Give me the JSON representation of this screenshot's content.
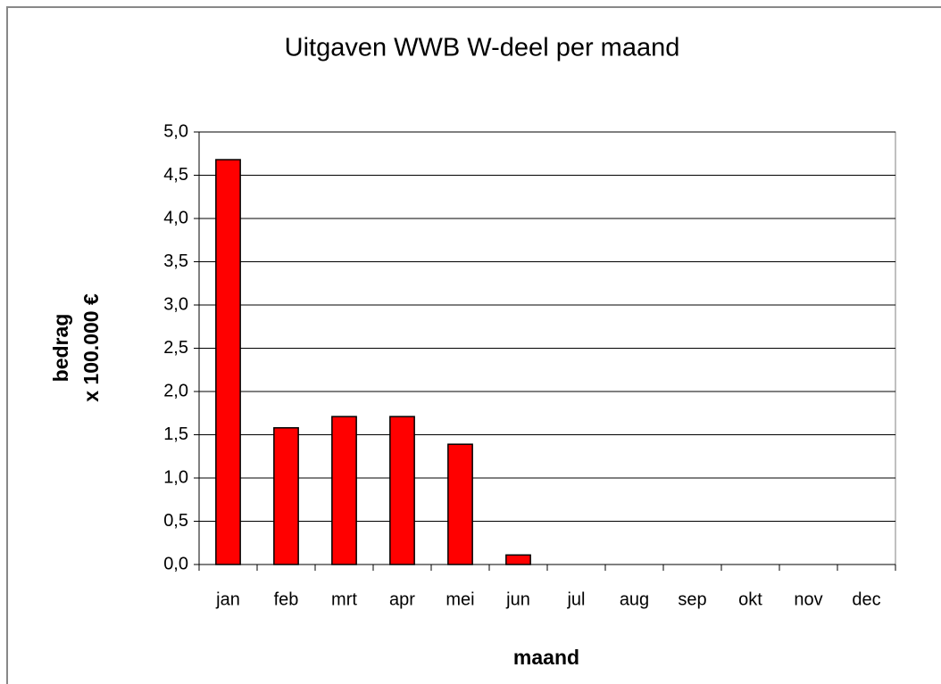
{
  "chart_data": {
    "type": "bar",
    "title": "Uitgaven WWB W-deel per maand",
    "x_label": "maand",
    "y_label": [
      "bedrag",
      "x 100.000 €"
    ],
    "categories": [
      "jan",
      "feb",
      "mrt",
      "apr",
      "mei",
      "jun",
      "jul",
      "aug",
      "sep",
      "okt",
      "nov",
      "dec"
    ],
    "values": [
      4.68,
      1.58,
      1.71,
      1.71,
      1.39,
      0.11,
      null,
      null,
      null,
      null,
      null,
      null
    ],
    "color": "#ff0000",
    "ylim": [
      0,
      5
    ],
    "yticks": [
      {
        "value": 0,
        "label": "0,0"
      },
      {
        "value": 0.5,
        "label": "0,5"
      },
      {
        "value": 1,
        "label": "1,0"
      },
      {
        "value": 1.5,
        "label": "1,5"
      },
      {
        "value": 2,
        "label": "2,0"
      },
      {
        "value": 2.5,
        "label": "2,5"
      },
      {
        "value": 3,
        "label": "3,0"
      },
      {
        "value": 3.5,
        "label": "3,5"
      },
      {
        "value": 4,
        "label": "4,0"
      },
      {
        "value": 4.5,
        "label": "4,5"
      },
      {
        "value": 5,
        "label": "5,0"
      }
    ],
    "grid": true
  }
}
